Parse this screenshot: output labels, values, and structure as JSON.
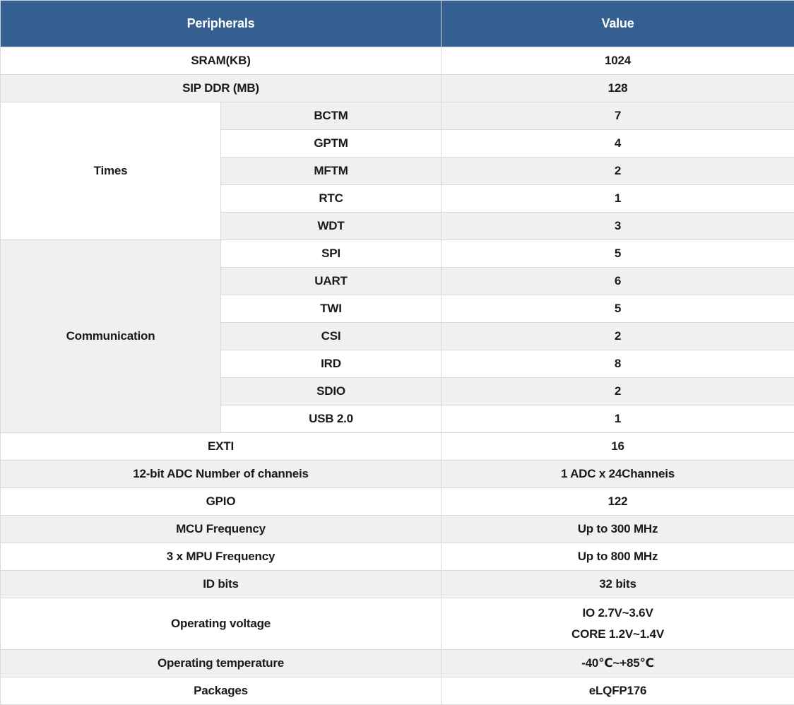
{
  "colors": {
    "header_bg": "#365f91",
    "header_text": "#ffffff",
    "stripe_bg": "#f0f0f0",
    "row_bg": "#ffffff",
    "border": "#d9d9d9",
    "text": "#1a1a1a"
  },
  "header": {
    "peripherals": "Peripherals",
    "value": "Value"
  },
  "rows": [
    {
      "label": "SRAM(KB)",
      "value": "1024"
    },
    {
      "label": "SIP DDR (MB)",
      "value": "128"
    },
    {
      "group": "Times",
      "label": "BCTM",
      "value": "7"
    },
    {
      "label": "GPTM",
      "value": "4"
    },
    {
      "label": "MFTM",
      "value": "2"
    },
    {
      "label": "RTC",
      "value": "1"
    },
    {
      "label": "WDT",
      "value": "3"
    },
    {
      "group": "Communication",
      "label": "SPI",
      "value": "5"
    },
    {
      "label": "UART",
      "value": "6"
    },
    {
      "label": "TWI",
      "value": "5"
    },
    {
      "label": "CSI",
      "value": "2"
    },
    {
      "label": "IRD",
      "value": "8"
    },
    {
      "label": "SDIO",
      "value": "2"
    },
    {
      "label": "USB 2.0",
      "value": "1"
    },
    {
      "label": "EXTI",
      "value": "16"
    },
    {
      "label": "12-bit ADC Number of channeis",
      "value": "1 ADC x 24Channeis"
    },
    {
      "label": "GPIO",
      "value": "122"
    },
    {
      "label": "MCU Frequency",
      "value": "Up to 300 MHz"
    },
    {
      "label": "3 x MPU Frequency",
      "value": "Up to 800 MHz"
    },
    {
      "label": "ID bits",
      "value": "32 bits"
    },
    {
      "label": "Operating voltage",
      "value_line1": "IO 2.7V~3.6V",
      "value_line2": "CORE 1.2V~1.4V"
    },
    {
      "label": "Operating temperature",
      "value": "-40℃~+85℃"
    },
    {
      "label": "Packages",
      "value": "eLQFP176"
    }
  ]
}
